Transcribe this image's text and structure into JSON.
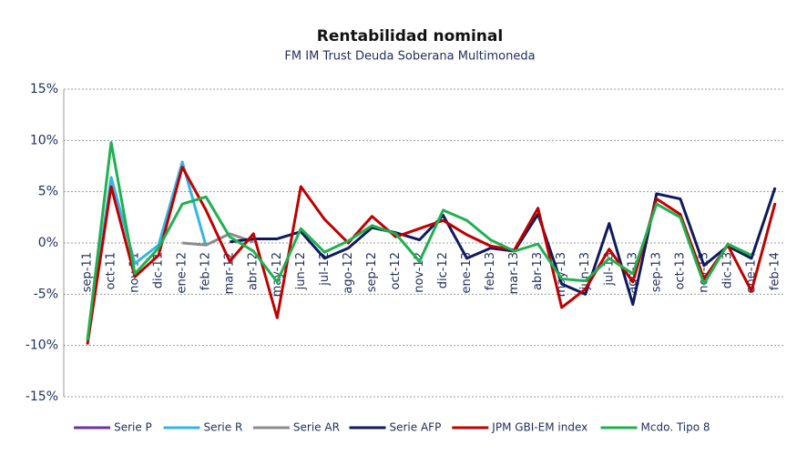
{
  "chart_data": {
    "type": "line",
    "title": "Rentabilidad nominal",
    "subtitle": "FM IM Trust Deuda Soberana Multimoneda",
    "categories": [
      "sep-11",
      "oct-11",
      "nov-11",
      "dic-11",
      "ene-12",
      "feb-12",
      "mar-12",
      "abr-12",
      "may-12",
      "jun-12",
      "jul-12",
      "ago-12",
      "sep-12",
      "oct-12",
      "nov-12",
      "dic-12",
      "ene-13",
      "feb-13",
      "mar-13",
      "abr-13",
      "may-13",
      "jun-13",
      "jul-13",
      "ago-13",
      "sep-13",
      "oct-13",
      "nov-13",
      "dic-13",
      "ene-14",
      "feb-14"
    ],
    "ylim": [
      -15,
      15
    ],
    "yticks": [
      {
        "value": -15,
        "label": "-15%"
      },
      {
        "value": -10,
        "label": "-10%"
      },
      {
        "value": -5,
        "label": "-5%"
      },
      {
        "value": 0,
        "label": "0%"
      },
      {
        "value": 5,
        "label": "5%"
      },
      {
        "value": 10,
        "label": "10%"
      },
      {
        "value": 15,
        "label": "15%"
      }
    ],
    "grid": true,
    "legend": "bottom",
    "series": [
      {
        "name": "Serie P",
        "color": "#7030a0",
        "values": [
          null,
          null,
          null,
          null,
          null,
          null,
          null,
          null,
          null,
          null,
          null,
          null,
          null,
          null,
          null,
          null,
          null,
          null,
          null,
          null,
          null,
          null,
          null,
          null,
          null,
          null,
          null,
          null,
          null,
          null
        ]
      },
      {
        "name": "Serie R",
        "color": "#33b5e5",
        "values": [
          -9.5,
          6.4,
          -2,
          -0.2,
          7.9,
          -0.3,
          null,
          null,
          null,
          null,
          null,
          null,
          null,
          null,
          null,
          null,
          null,
          null,
          null,
          null,
          null,
          null,
          null,
          null,
          null,
          null,
          null,
          null,
          null,
          null
        ]
      },
      {
        "name": "Serie AR",
        "color": "#8c8c8c",
        "values": [
          null,
          null,
          null,
          null,
          0,
          -0.2,
          0.9,
          0.1,
          null,
          null,
          null,
          null,
          null,
          null,
          null,
          null,
          null,
          null,
          null,
          null,
          null,
          null,
          null,
          null,
          null,
          null,
          null,
          null,
          null,
          null
        ]
      },
      {
        "name": "Serie AFP",
        "color": "#0d1a5e",
        "values": [
          null,
          null,
          null,
          null,
          null,
          null,
          0.1,
          0.4,
          0.4,
          1.1,
          -1.5,
          -0.5,
          1.5,
          1,
          0.3,
          2.7,
          -1.5,
          -0.5,
          -0.8,
          2.8,
          -4,
          -5,
          1.9,
          -6,
          4.8,
          4.3,
          -2.2,
          -0.3,
          -1.5,
          5.4
        ]
      },
      {
        "name": "JPM GBI-EM index",
        "color": "#c00000",
        "values": [
          -9.9,
          5.5,
          -3.3,
          -1.2,
          7.4,
          3.2,
          -1.8,
          0.9,
          -7.3,
          5.5,
          2.3,
          0,
          2.6,
          0.6,
          1.4,
          2.2,
          0.8,
          -0.3,
          -0.7,
          3.4,
          -6.3,
          -4.5,
          -0.6,
          -3.8,
          4.3,
          2.8,
          -3.5,
          -0.2,
          -4.7,
          3.9
        ]
      },
      {
        "name": "Mcdo. Tipo 8",
        "color": "#1fb050",
        "values": [
          -9.5,
          9.8,
          -3,
          -0.5,
          3.8,
          4.5,
          0.6,
          -0.8,
          -3.8,
          1.4,
          -0.9,
          0.2,
          1.7,
          0.9,
          -1.8,
          3.2,
          2.2,
          0.3,
          -0.8,
          -0.1,
          -3.5,
          -3.7,
          -1.5,
          -3,
          3.8,
          2.5,
          -4,
          -0.1,
          -1.2,
          null
        ]
      }
    ]
  }
}
